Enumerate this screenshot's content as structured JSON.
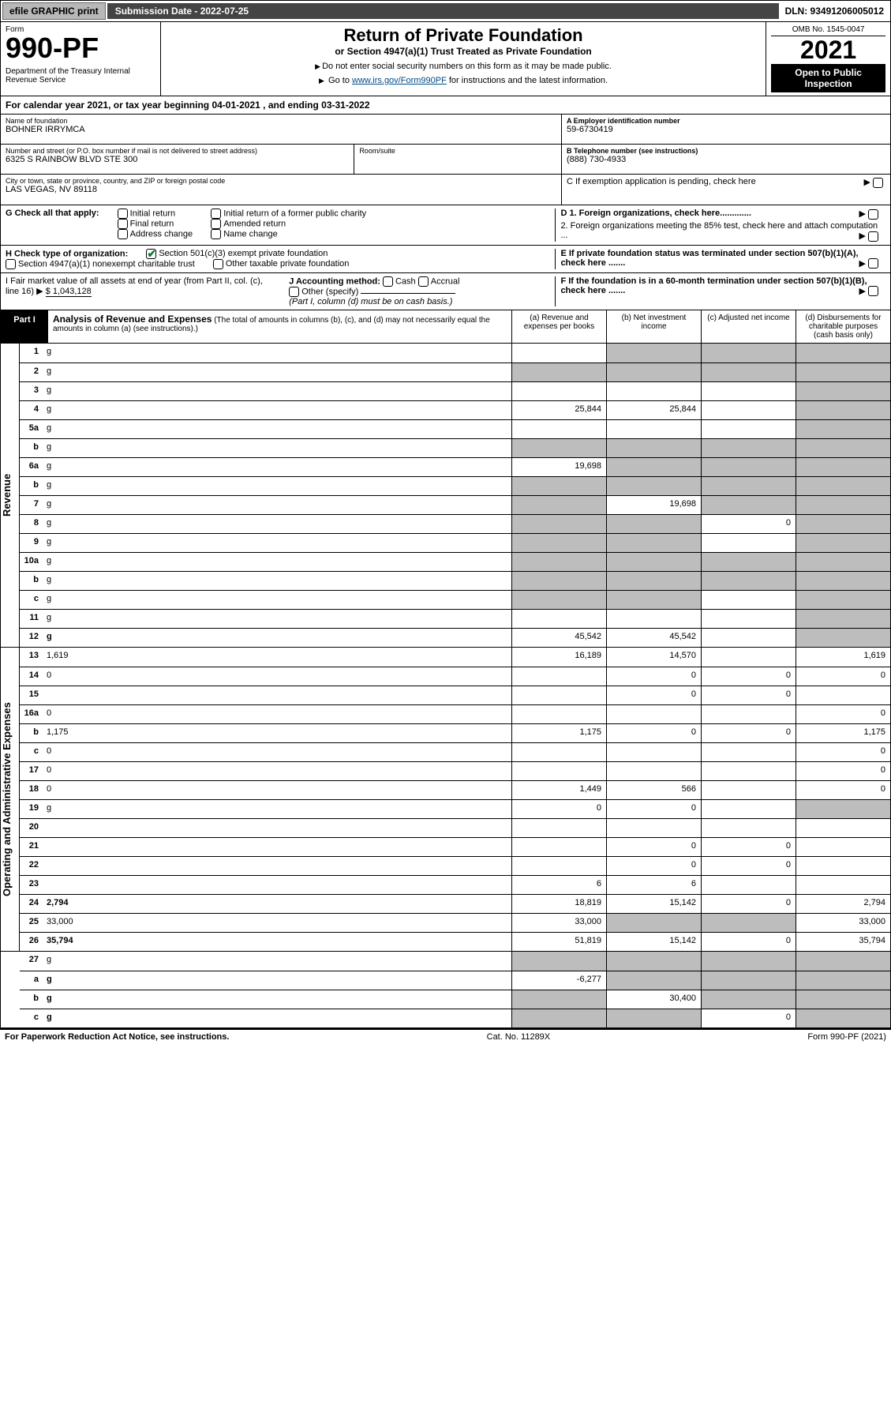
{
  "topbar": {
    "efile": "efile GRAPHIC print",
    "sub_label": "Submission Date - 2022-07-25",
    "dln": "DLN: 93491206005012"
  },
  "header": {
    "form_word": "Form",
    "form_num": "990-PF",
    "dept": "Department of the Treasury\nInternal Revenue Service",
    "title": "Return of Private Foundation",
    "subtitle": "or Section 4947(a)(1) Trust Treated as Private Foundation",
    "inst1": "Do not enter social security numbers on this form as it may be made public.",
    "inst2_pre": "Go to ",
    "inst2_link": "www.irs.gov/Form990PF",
    "inst2_post": " for instructions and the latest information.",
    "omb": "OMB No. 1545-0047",
    "year": "2021",
    "open": "Open to Public Inspection"
  },
  "calendar": "For calendar year 2021, or tax year beginning 04-01-2021            , and ending 03-31-2022",
  "ident": {
    "name_lbl": "Name of foundation",
    "name": "BOHNER IRRYMCA",
    "addr_lbl": "Number and street (or P.O. box number if mail is not delivered to street address)",
    "addr": "6325 S RAINBOW BLVD STE 300",
    "room_lbl": "Room/suite",
    "city_lbl": "City or town, state or province, country, and ZIP or foreign postal code",
    "city": "LAS VEGAS, NV  89118",
    "ein_lbl": "A Employer identification number",
    "ein": "59-6730419",
    "tel_lbl": "B Telephone number (see instructions)",
    "tel": "(888) 730-4933",
    "c": "C If exemption application is pending, check here",
    "d1": "D 1. Foreign organizations, check here.............",
    "d2": "2. Foreign organizations meeting the 85% test, check here and attach computation ...",
    "e": "E If private foundation status was terminated under section 507(b)(1)(A), check here .......",
    "f": "F If the foundation is in a 60-month termination under section 507(b)(1)(B), check here ......."
  },
  "G": {
    "label": "G Check all that apply:",
    "opts": [
      "Initial return",
      "Final return",
      "Address change",
      "Initial return of a former public charity",
      "Amended return",
      "Name change"
    ]
  },
  "H": {
    "label": "H Check type of organization:",
    "o1": "Section 501(c)(3) exempt private foundation",
    "o2": "Section 4947(a)(1) nonexempt charitable trust",
    "o3": "Other taxable private foundation"
  },
  "I": {
    "label": "I Fair market value of all assets at end of year (from Part II, col. (c), line 16)",
    "amount": "$  1,043,128",
    "J": "J Accounting method:",
    "Jopts": [
      "Cash",
      "Accrual"
    ],
    "Jother": "Other (specify)",
    "Jnote": "(Part I, column (d) must be on cash basis.)"
  },
  "part1": {
    "tag": "Part I",
    "title": "Analysis of Revenue and Expenses",
    "note": "(The total of amounts in columns (b), (c), and (d) may not necessarily equal the amounts in column (a) (see instructions).)",
    "cols": {
      "a": "(a)  Revenue and expenses per books",
      "b": "(b)  Net investment income",
      "c": "(c)  Adjusted net income",
      "d": "(d)  Disbursements for charitable purposes (cash basis only)"
    }
  },
  "side_rev": "Revenue",
  "side_exp": "Operating and Administrative Expenses",
  "rows_rev": [
    {
      "n": "1",
      "d": "g",
      "a": "",
      "b": "g",
      "c": "g"
    },
    {
      "n": "2",
      "d": "g",
      "a": "g",
      "b": "g",
      "c": "g"
    },
    {
      "n": "3",
      "d": "g",
      "a": "",
      "b": "",
      "c": ""
    },
    {
      "n": "4",
      "d": "g",
      "a": "25,844",
      "b": "25,844",
      "c": ""
    },
    {
      "n": "5a",
      "d": "g",
      "a": "",
      "b": "",
      "c": ""
    },
    {
      "n": "b",
      "d": "g",
      "a": "g",
      "b": "g",
      "c": "g"
    },
    {
      "n": "6a",
      "d": "g",
      "a": "19,698",
      "b": "g",
      "c": "g"
    },
    {
      "n": "b",
      "d": "g",
      "a": "g",
      "b": "g",
      "c": "g"
    },
    {
      "n": "7",
      "d": "g",
      "a": "g",
      "b": "19,698",
      "c": "g"
    },
    {
      "n": "8",
      "d": "g",
      "a": "g",
      "b": "g",
      "c": "0"
    },
    {
      "n": "9",
      "d": "g",
      "a": "g",
      "b": "g",
      "c": ""
    },
    {
      "n": "10a",
      "d": "g",
      "a": "g",
      "b": "g",
      "c": "g"
    },
    {
      "n": "b",
      "d": "g",
      "a": "g",
      "b": "g",
      "c": "g"
    },
    {
      "n": "c",
      "d": "g",
      "a": "g",
      "b": "g",
      "c": ""
    },
    {
      "n": "11",
      "d": "g",
      "a": "",
      "b": "",
      "c": ""
    },
    {
      "n": "12",
      "d": "g",
      "a": "45,542",
      "b": "45,542",
      "c": "",
      "bold": true
    }
  ],
  "rows_exp": [
    {
      "n": "13",
      "d": "1,619",
      "a": "16,189",
      "b": "14,570",
      "c": ""
    },
    {
      "n": "14",
      "d": "0",
      "a": "",
      "b": "0",
      "c": "0"
    },
    {
      "n": "15",
      "d": "",
      "a": "",
      "b": "0",
      "c": "0"
    },
    {
      "n": "16a",
      "d": "0",
      "a": "",
      "b": "",
      "c": ""
    },
    {
      "n": "b",
      "d": "1,175",
      "a": "1,175",
      "b": "0",
      "c": "0"
    },
    {
      "n": "c",
      "d": "0",
      "a": "",
      "b": "",
      "c": ""
    },
    {
      "n": "17",
      "d": "0",
      "a": "",
      "b": "",
      "c": ""
    },
    {
      "n": "18",
      "d": "0",
      "a": "1,449",
      "b": "566",
      "c": ""
    },
    {
      "n": "19",
      "d": "g",
      "a": "0",
      "b": "0",
      "c": ""
    },
    {
      "n": "20",
      "d": "",
      "a": "",
      "b": "",
      "c": ""
    },
    {
      "n": "21",
      "d": "",
      "a": "",
      "b": "0",
      "c": "0"
    },
    {
      "n": "22",
      "d": "",
      "a": "",
      "b": "0",
      "c": "0"
    },
    {
      "n": "23",
      "d": "",
      "a": "6",
      "b": "6",
      "c": ""
    },
    {
      "n": "24",
      "d": "2,794",
      "a": "18,819",
      "b": "15,142",
      "c": "0",
      "bold": true
    },
    {
      "n": "25",
      "d": "33,000",
      "a": "33,000",
      "b": "g",
      "c": "g"
    },
    {
      "n": "26",
      "d": "35,794",
      "a": "51,819",
      "b": "15,142",
      "c": "0",
      "bold": true
    }
  ],
  "rows_bot": [
    {
      "n": "27",
      "d": "g",
      "a": "g",
      "b": "g",
      "c": "g"
    },
    {
      "n": "a",
      "d": "g",
      "a": "-6,277",
      "b": "g",
      "c": "g",
      "bold": true
    },
    {
      "n": "b",
      "d": "g",
      "a": "g",
      "b": "30,400",
      "c": "g",
      "bold": true
    },
    {
      "n": "c",
      "d": "g",
      "a": "g",
      "b": "g",
      "c": "0",
      "bold": true
    }
  ],
  "foot": {
    "l": "For Paperwork Reduction Act Notice, see instructions.",
    "c": "Cat. No. 11289X",
    "r": "Form 990-PF (2021)"
  },
  "colors": {
    "grey_cell": "#bdbdbd",
    "link": "#004b87",
    "check": "#0a7a2a"
  }
}
